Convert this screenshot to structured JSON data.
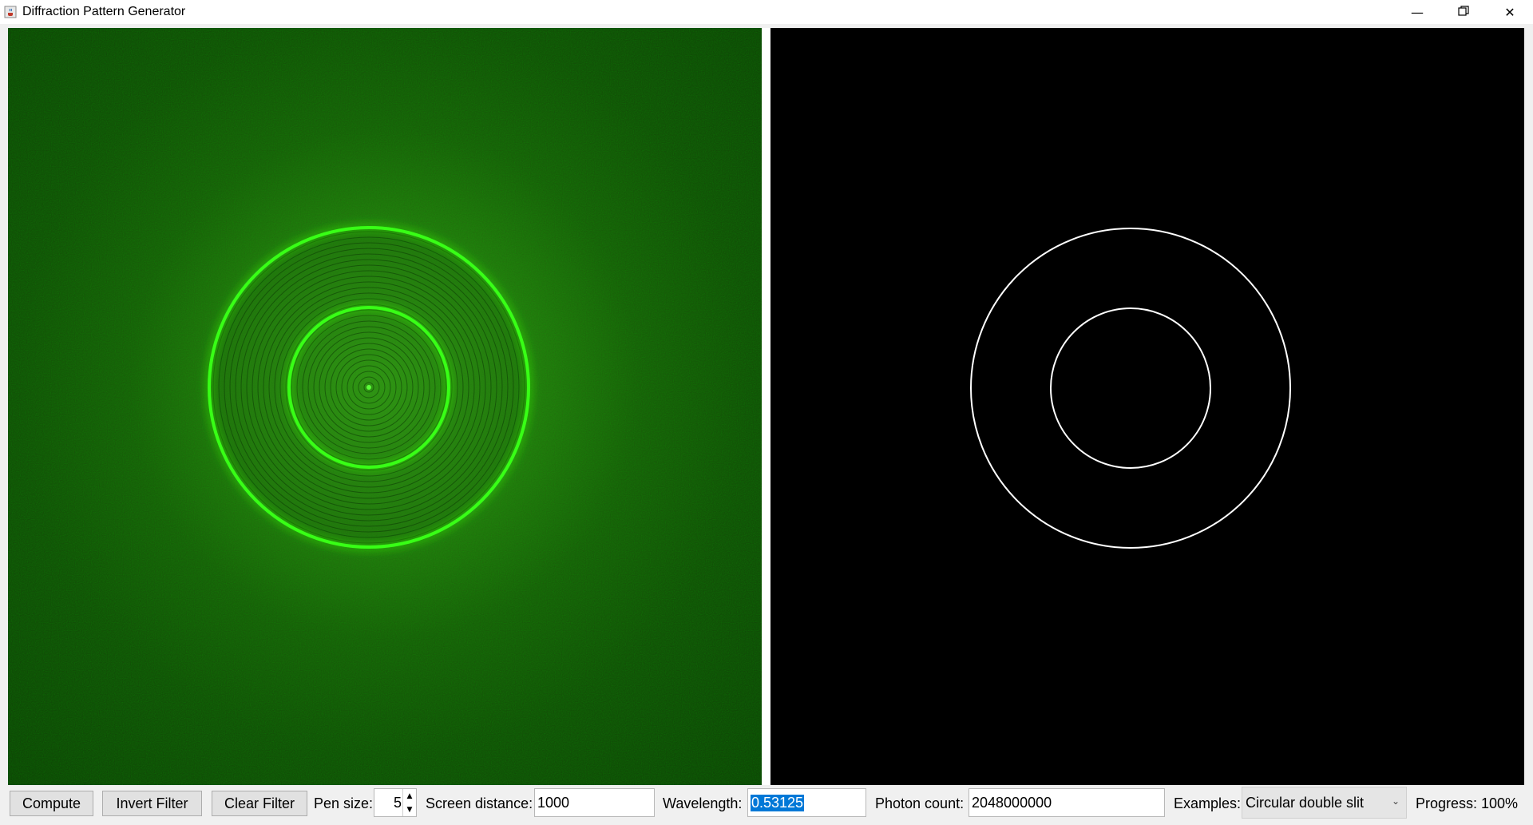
{
  "window": {
    "title": "Diffraction Pattern Generator",
    "app_icon": "java-cup-icon",
    "controls": {
      "minimize": "minimize-icon",
      "restore": "restore-icon",
      "close": "close-icon"
    }
  },
  "toolbar": {
    "compute_label": "Compute",
    "invert_label": "Invert Filter",
    "clear_label": "Clear Filter",
    "pen_size_label": "Pen size:",
    "pen_size_value": "5",
    "screen_distance_label": "Screen distance:",
    "screen_distance_value": "1000",
    "wavelength_label": "Wavelength:",
    "wavelength_value": "0.53125",
    "photon_count_label": "Photon count:",
    "photon_count_value": "2048000000",
    "examples_label": "Examples:",
    "examples_selected": "Circular double slit",
    "progress_label": "Progress: 100%"
  },
  "progress": {
    "percent": 100
  },
  "colors": {
    "pattern_bright": "#39ff14",
    "pattern_background": "#154a08",
    "filter_background": "#000000",
    "filter_stroke": "#ffffff",
    "selection": "#0078d7"
  }
}
